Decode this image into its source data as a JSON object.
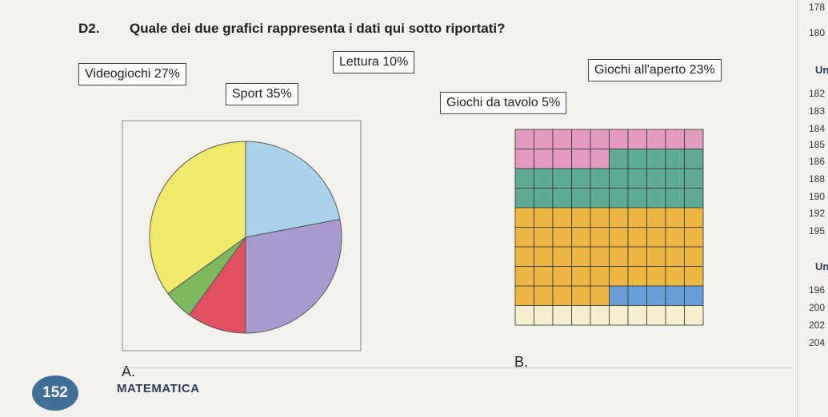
{
  "question": {
    "number": "D2.",
    "text": "Quale dei due grafici rappresenta i dati qui sotto riportati?"
  },
  "data_labels": [
    "Videogiochi 27%",
    "Sport 35%",
    "Lettura 10%",
    "Giochi da tavolo 5%",
    "Giochi all'aperto 23%"
  ],
  "chart_data": [
    {
      "type": "pie",
      "label": "A.",
      "slices": [
        {
          "value": 22,
          "color": "#a9d3ec"
        },
        {
          "value": 28,
          "color": "#a99bd1"
        },
        {
          "value": 10,
          "color": "#e2505f"
        },
        {
          "value": 5,
          "color": "#7cb85e"
        },
        {
          "value": 35,
          "color": "#f0e96a"
        }
      ]
    },
    {
      "type": "grid",
      "label": "B.",
      "rows": 10,
      "cols": 10,
      "segments": [
        {
          "cells": 15,
          "color": "#e39cc0"
        },
        {
          "cells": 25,
          "color": "#5fab96"
        },
        {
          "cells": 45,
          "color": "#ebb742"
        },
        {
          "cells": 5,
          "color": "#6a9ed6"
        },
        {
          "cells": 10,
          "color": "#f5efcd"
        }
      ]
    }
  ],
  "footer": {
    "page_number": "152",
    "subject": "MATEMATICA"
  },
  "margin": {
    "numbers_top": [
      "178",
      "180"
    ],
    "head1": "Unità",
    "numbers_mid": [
      "182",
      "183",
      "184",
      "185",
      "186",
      "188",
      "190",
      "192",
      "195"
    ],
    "head2": "Unit",
    "numbers_bottom": [
      "196",
      "200",
      "202",
      "204"
    ]
  }
}
